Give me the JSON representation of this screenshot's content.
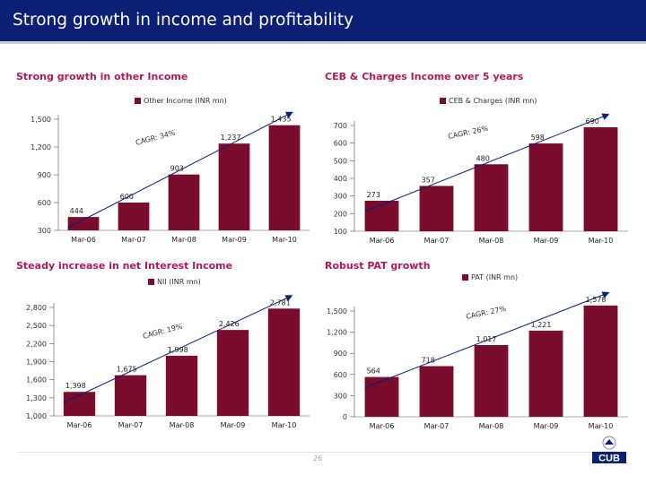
{
  "page": {
    "title": "Strong growth in income and profitability",
    "number": "26"
  },
  "colors": {
    "header": "#0b1f75",
    "accent": "#b0185c",
    "bar": "#7a0c2e",
    "arrow": "#0b1f75"
  },
  "logo": {
    "text": "CUB",
    "icon": "cub-logo-icon"
  },
  "chart_data": [
    {
      "id": "other-income",
      "type": "bar",
      "title": "Strong growth in other Income",
      "legend": "Other Income (INR mn)",
      "legend_position": "top",
      "categories": [
        "Mar-06",
        "Mar-07",
        "Mar-08",
        "Mar-09",
        "Mar-10"
      ],
      "values": [
        444,
        600,
        903,
        1237,
        1435
      ],
      "labels": [
        "444",
        "600",
        "903",
        "1,237",
        "1,435"
      ],
      "yticks": [
        300,
        600,
        900,
        1200,
        1500
      ],
      "ytick_labels": [
        "300",
        "600",
        "900",
        "1,200",
        "1,500"
      ],
      "ylim": [
        300,
        1500
      ],
      "cagr": "CAGR: 34%",
      "bar_style": "dark"
    },
    {
      "id": "ceb-charges",
      "type": "bar",
      "title": "CEB & Charges Income over 5 years",
      "legend": "CEB & Charges (INR mn)",
      "legend_position": "top",
      "categories": [
        "Mar-06",
        "Mar-07",
        "Mar-08",
        "Mar-09",
        "Mar-10"
      ],
      "values": [
        273,
        357,
        480,
        598,
        690
      ],
      "labels": [
        "273",
        "357",
        "480",
        "598",
        "690"
      ],
      "yticks": [
        100,
        200,
        300,
        400,
        500,
        600,
        700
      ],
      "ytick_labels": [
        "100",
        "200",
        "300",
        "400",
        "500",
        "600",
        "700"
      ],
      "ylim": [
        100,
        700
      ],
      "cagr": "CAGR: 26%",
      "bar_style": "dark"
    },
    {
      "id": "nii",
      "type": "bar",
      "title": "Steady increase in net Interest Income",
      "legend": "NII (INR mn)",
      "legend_position": "top",
      "categories": [
        "Mar-06",
        "Mar-07",
        "Mar-08",
        "Mar-09",
        "Mar-10"
      ],
      "values": [
        1398,
        1675,
        1998,
        2426,
        2781
      ],
      "labels": [
        "1,398",
        "1,675",
        "1,998",
        "2,426",
        "2,781"
      ],
      "yticks": [
        1000,
        1300,
        1600,
        1900,
        2200,
        2500,
        2800
      ],
      "ytick_labels": [
        "1,000",
        "1,300",
        "1,600",
        "1,900",
        "2,200",
        "2,500",
        "2,800"
      ],
      "ylim": [
        1000,
        2800
      ],
      "cagr": "CAGR: 19%",
      "bar_style": "dark"
    },
    {
      "id": "pat",
      "type": "bar",
      "title": "Robust PAT growth",
      "legend": "PAT (INR mn)",
      "legend_position": "top",
      "categories": [
        "Mar-06",
        "Mar-07",
        "Mar-08",
        "Mar-09",
        "Mar-10"
      ],
      "values": [
        564,
        718,
        1017,
        1221,
        1578
      ],
      "labels": [
        "564",
        "718",
        "1,017",
        "1,221",
        "1,578"
      ],
      "yticks": [
        0,
        300,
        600,
        900,
        1200,
        1500
      ],
      "ytick_labels": [
        "0",
        "300",
        "600",
        "900",
        "1,200",
        "1,500"
      ],
      "ylim": [
        0,
        1500
      ],
      "cagr": "CAGR: 27%",
      "bar_style": "dark"
    }
  ]
}
